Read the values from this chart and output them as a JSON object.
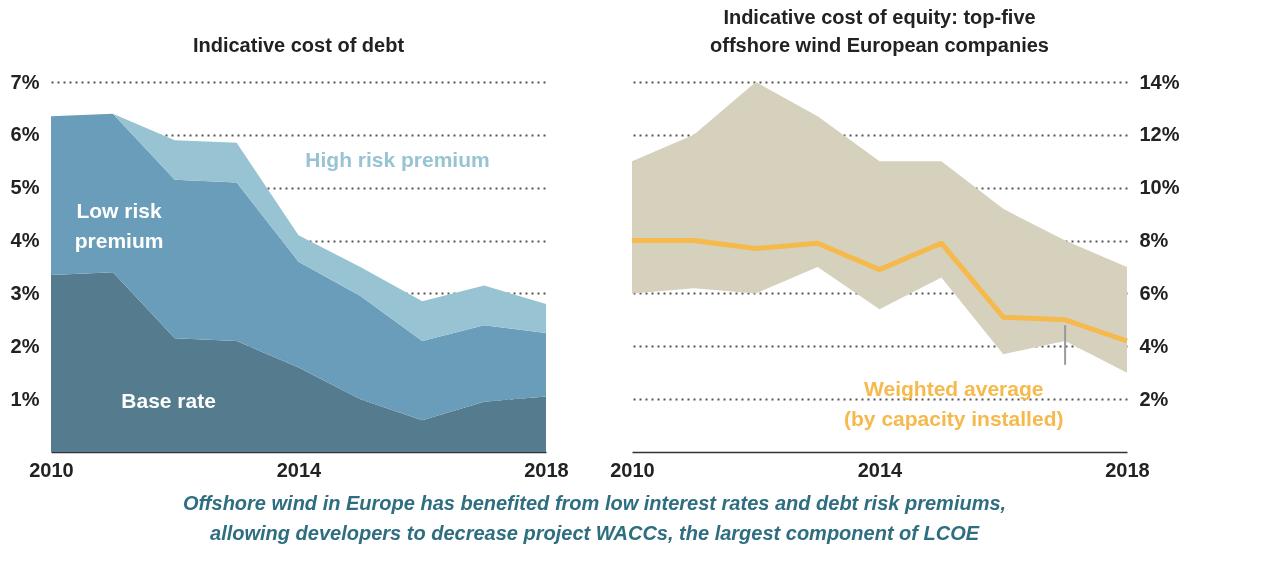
{
  "chart_data": [
    {
      "type": "area",
      "title": "Indicative cost of debt",
      "stacked": true,
      "x": [
        2010,
        2011,
        2012,
        2013,
        2014,
        2015,
        2016,
        2017,
        2018
      ],
      "xlim": [
        2010,
        2018
      ],
      "xticks": [
        2010,
        2014,
        2018
      ],
      "ylim": [
        0,
        7
      ],
      "yticks": [
        {
          "value": 1,
          "label": "1%"
        },
        {
          "value": 2,
          "label": "2%"
        },
        {
          "value": 3,
          "label": "3%"
        },
        {
          "value": 4,
          "label": "4%"
        },
        {
          "value": 5,
          "label": "5%"
        },
        {
          "value": 6,
          "label": "6%"
        },
        {
          "value": 7,
          "label": "7%"
        }
      ],
      "grid": "y",
      "series": [
        {
          "name": "Base rate",
          "color": "#557c8e",
          "values": [
            3.35,
            3.4,
            2.15,
            2.1,
            1.6,
            1.0,
            0.6,
            0.95,
            1.05
          ]
        },
        {
          "name": "Low risk premium",
          "color": "#6a9dba",
          "values": [
            3.0,
            3.0,
            3.0,
            3.0,
            2.0,
            1.95,
            1.5,
            1.45,
            1.2
          ]
        },
        {
          "name": "High risk premium",
          "color": "#98c3d3",
          "values": [
            0,
            0,
            0.75,
            0.75,
            0.5,
            0.55,
            0.75,
            0.75,
            0.55
          ]
        }
      ]
    },
    {
      "type": "line",
      "title": "Indicative cost of equity: top-five offshore wind European companies",
      "x": [
        2010,
        2011,
        2012,
        2013,
        2014,
        2015,
        2016,
        2017,
        2018
      ],
      "xlim": [
        2010,
        2018
      ],
      "xticks": [
        2010,
        2014,
        2018
      ],
      "y2lim": [
        0,
        14
      ],
      "y2ticks": [
        {
          "value": 2,
          "label": "2%"
        },
        {
          "value": 4,
          "label": "4%"
        },
        {
          "value": 6,
          "label": "6%"
        },
        {
          "value": 8,
          "label": "8%"
        },
        {
          "value": 10,
          "label": "10%"
        },
        {
          "value": 12,
          "label": "12%"
        },
        {
          "value": 14,
          "label": "14%"
        }
      ],
      "grid": "y",
      "series": [
        {
          "name": "Weighted average (by capacity installed)",
          "color": "#f5b94c",
          "axis": "y2",
          "values": [
            8.0,
            8.0,
            7.7,
            7.9,
            6.9,
            7.9,
            5.1,
            5.0,
            4.2
          ],
          "lower": [
            6.0,
            6.2,
            6.0,
            7.0,
            5.4,
            6.6,
            3.7,
            4.2,
            3.0
          ],
          "upper": [
            11.0,
            12.0,
            14.0,
            12.7,
            11.0,
            11.0,
            9.2,
            8.0,
            7.0
          ]
        }
      ],
      "annotations": [
        "Offshore wind in Europe has benefited from low interest rates and debt risk premiums, allowing developers to decrease project WACCs, the largest component of LCOE"
      ]
    }
  ]
}
